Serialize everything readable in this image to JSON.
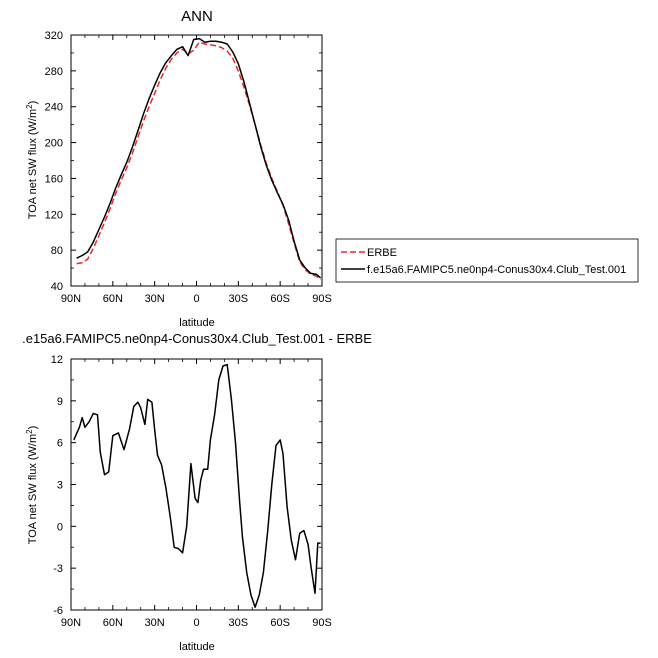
{
  "chart_data": [
    {
      "type": "line",
      "title": "ANN",
      "xlabel": "latitude",
      "ylabel": "TOA net SW flux (W/m",
      "ylabel_sup": "2",
      "ylabel_close": ")",
      "xlim": [
        90,
        -90
      ],
      "ylim": [
        40,
        320
      ],
      "x_ticks": [
        90,
        60,
        30,
        0,
        -30,
        -60,
        -90
      ],
      "x_tick_labels": [
        "90N",
        "60N",
        "30N",
        "0",
        "30S",
        "60S",
        "90S"
      ],
      "y_ticks": [
        40,
        80,
        120,
        160,
        200,
        240,
        280,
        320
      ],
      "y_tick_labels": [
        "40",
        "80",
        "120",
        "160",
        "200",
        "240",
        "280",
        "320"
      ],
      "legend_position": "right",
      "series": [
        {
          "name": "ERBE",
          "color": "#e8262b",
          "dash": "dashed",
          "x": [
            86,
            82,
            78,
            74,
            70,
            66,
            62,
            58,
            54,
            50,
            46,
            42,
            38,
            34,
            30,
            26,
            22,
            18,
            14,
            10,
            6,
            2,
            -2,
            -6,
            -10,
            -14,
            -18,
            -22,
            -26,
            -30,
            -34,
            -38,
            -42,
            -46,
            -50,
            -54,
            -58,
            -62,
            -66,
            -70,
            -74,
            -78,
            -82,
            -86,
            -89
          ],
          "values": [
            65,
            66,
            70,
            82,
            96,
            111,
            126,
            143,
            158,
            172,
            188,
            206,
            224,
            240,
            255,
            270,
            283,
            293,
            300,
            304,
            299,
            303,
            312,
            310,
            309,
            308,
            306,
            302,
            294,
            280,
            262,
            242,
            220,
            198,
            177,
            160,
            145,
            130,
            110,
            88,
            67,
            58,
            53,
            51,
            47
          ]
        },
        {
          "name": "f.e15a6.FAMIPC5.ne0np4-Conus30x4.Club_Test.001",
          "color": "#000000",
          "dash": "solid",
          "x": [
            86,
            82,
            78,
            74,
            70,
            66,
            62,
            58,
            54,
            50,
            46,
            42,
            38,
            34,
            30,
            26,
            22,
            18,
            14,
            10,
            6,
            2,
            -2,
            -6,
            -10,
            -14,
            -18,
            -22,
            -26,
            -30,
            -34,
            -38,
            -42,
            -46,
            -50,
            -54,
            -58,
            -62,
            -66,
            -70,
            -74,
            -78,
            -82,
            -86,
            -89
          ],
          "values": [
            71,
            74,
            78,
            89,
            103,
            117,
            132,
            149,
            164,
            178,
            195,
            213,
            232,
            249,
            264,
            278,
            289,
            297,
            304,
            307,
            297,
            315,
            316,
            312,
            313,
            313,
            312,
            310,
            301,
            288,
            268,
            244,
            220,
            196,
            175,
            158,
            144,
            131,
            114,
            90,
            69,
            60,
            54,
            53,
            49
          ]
        }
      ]
    },
    {
      "type": "line",
      "title": ".e15a6.FAMIPC5.ne0np4-Conus30x4.Club_Test.001 - ERBE",
      "xlabel": "latitude",
      "ylabel": "TOA net SW flux (W/m",
      "ylabel_sup": "2",
      "ylabel_close": ")",
      "xlim": [
        90,
        -90
      ],
      "ylim": [
        -6,
        12
      ],
      "x_ticks": [
        90,
        60,
        30,
        0,
        -30,
        -60,
        -90
      ],
      "x_tick_labels": [
        "90N",
        "60N",
        "30N",
        "0",
        "30S",
        "60S",
        "90S"
      ],
      "y_ticks": [
        -6,
        -3,
        0,
        3,
        6,
        9,
        12
      ],
      "y_tick_labels": [
        "-6",
        "-3",
        "0",
        "3",
        "6",
        "9",
        "12"
      ],
      "series": [
        {
          "color": "#000000",
          "dash": "solid",
          "x": [
            88,
            84,
            82,
            80,
            77,
            74,
            71,
            69,
            66,
            63,
            60,
            56,
            52,
            48,
            45,
            42,
            40,
            37,
            35,
            32,
            30,
            28,
            25,
            22,
            19,
            16,
            13,
            10,
            7,
            4,
            1,
            -1,
            -3,
            -5,
            -8,
            -10,
            -13,
            -16,
            -19,
            -22,
            -25,
            -28,
            -31,
            -33,
            -36,
            -39,
            -42,
            -45,
            -48,
            -51,
            -54,
            -57,
            -60,
            -62,
            -65,
            -68,
            -71,
            -74,
            -77,
            -80,
            -82,
            -85,
            -87,
            -89
          ],
          "values": [
            6.2,
            7.1,
            7.8,
            7.1,
            7.5,
            8.1,
            8.0,
            5.3,
            3.7,
            3.9,
            6.5,
            6.7,
            5.5,
            7.0,
            8.6,
            8.9,
            8.5,
            7.3,
            9.1,
            8.9,
            6.9,
            5.1,
            4.4,
            2.8,
            0.8,
            -1.5,
            -1.6,
            -1.9,
            0.0,
            4.5,
            2.0,
            1.7,
            3.3,
            4.1,
            4.1,
            6.2,
            8.0,
            10.5,
            11.5,
            11.6,
            9.1,
            6.0,
            1.7,
            -0.8,
            -3.3,
            -4.9,
            -5.8,
            -4.9,
            -3.3,
            -0.4,
            3.0,
            5.8,
            6.2,
            5.2,
            1.4,
            -1.0,
            -2.4,
            -0.5,
            -0.3,
            -1.3,
            -2.8,
            -4.8,
            -1.2,
            -1.2
          ]
        }
      ]
    }
  ]
}
